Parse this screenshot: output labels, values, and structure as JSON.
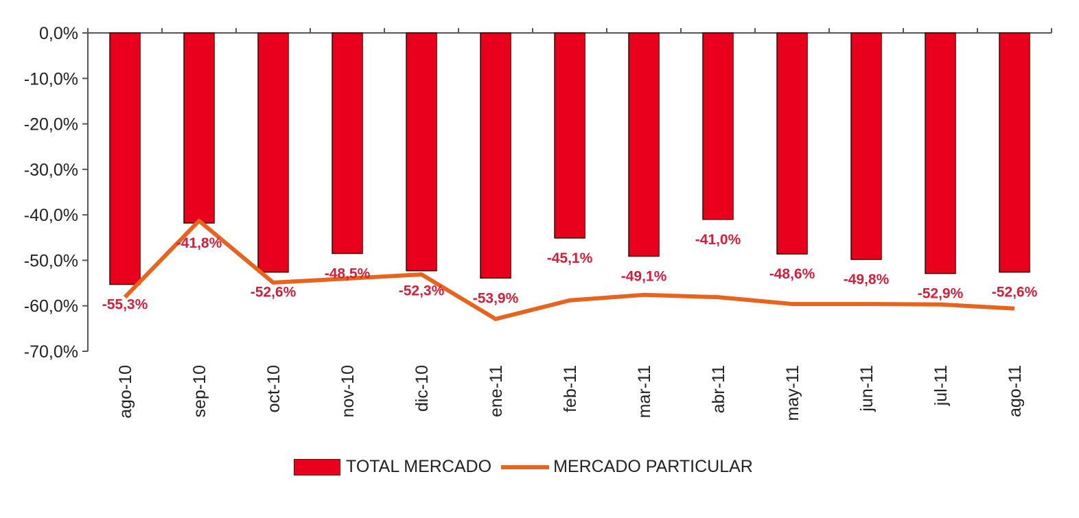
{
  "chart_data": {
    "type": "bar",
    "categories": [
      "ago-10",
      "sep-10",
      "oct-10",
      "nov-10",
      "dic-10",
      "ene-11",
      "feb-11",
      "mar-11",
      "abr-11",
      "may-11",
      "jun-11",
      "jul-11",
      "ago-11"
    ],
    "series": [
      {
        "name": "TOTAL MERCADO",
        "type": "bar",
        "color": "#e8001c",
        "values": [
          -55.3,
          -41.8,
          -52.6,
          -48.5,
          -52.3,
          -53.9,
          -45.1,
          -49.1,
          -41.0,
          -48.6,
          -49.8,
          -52.9,
          -52.6
        ],
        "labels": [
          "-55,3%",
          "-41,8%",
          "-52,6%",
          "-48,5%",
          "-52,3%",
          "-53,9%",
          "-45,1%",
          "-49,1%",
          "-41,0%",
          "-48,6%",
          "-49,8%",
          "-52,9%",
          "-52,6%"
        ]
      },
      {
        "name": "MERCADO PARTICULAR",
        "type": "line",
        "color": "#e8641e",
        "values": [
          -58.1,
          -41.3,
          -54.9,
          -54.0,
          -53.1,
          -62.9,
          -58.8,
          -57.6,
          -58.1,
          -59.6,
          -59.6,
          -59.7,
          -60.6
        ]
      }
    ],
    "ylim": [
      -70,
      0
    ],
    "yticks": [
      0,
      -10,
      -20,
      -30,
      -40,
      -50,
      -60,
      -70
    ],
    "ytick_labels": [
      "0,0%",
      "-10,0%",
      "-20,0%",
      "-30,0%",
      "-40,0%",
      "-50,0%",
      "-60,0%",
      "-70,0%"
    ],
    "grid": false,
    "legend_position": "bottom"
  }
}
